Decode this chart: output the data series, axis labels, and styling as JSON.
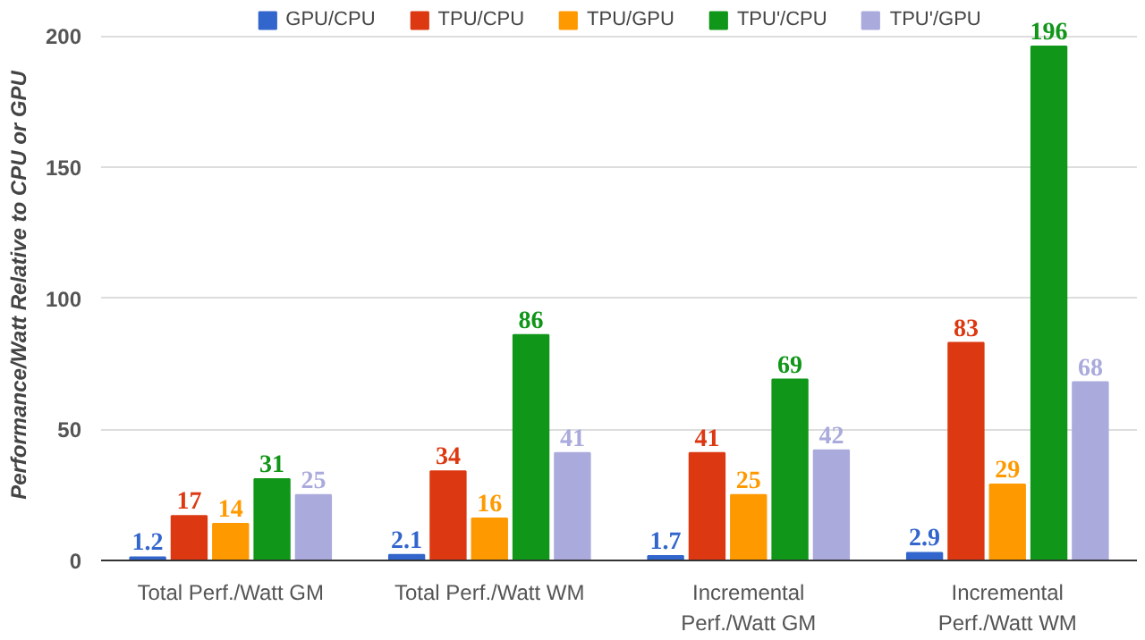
{
  "chart_data": {
    "type": "bar",
    "ylabel": "Performance/Watt Relative to CPU or GPU",
    "categories": [
      "Total Perf./Watt GM",
      "Total Perf./Watt WM",
      "Incremental\nPerf./Watt GM",
      "Incremental\nPerf./Watt WM"
    ],
    "series": [
      {
        "name": "GPU/CPU",
        "color": "#3366cc",
        "values": [
          1.2,
          2.1,
          1.7,
          2.9
        ]
      },
      {
        "name": "TPU/CPU",
        "color": "#dc3912",
        "values": [
          17,
          34,
          41,
          83
        ]
      },
      {
        "name": "TPU/GPU",
        "color": "#ff9900",
        "values": [
          14,
          16,
          25,
          29
        ]
      },
      {
        "name": "TPU'/CPU",
        "color": "#109618",
        "values": [
          31,
          86,
          69,
          196
        ]
      },
      {
        "name": "TPU'/GPU",
        "color": "#aaaadd",
        "values": [
          25,
          41,
          42,
          68
        ]
      }
    ],
    "data_labels": true,
    "ylim": [
      0,
      210
    ],
    "yticks": [
      0,
      50,
      100,
      150,
      200
    ],
    "grid": "y",
    "legend": "top"
  }
}
